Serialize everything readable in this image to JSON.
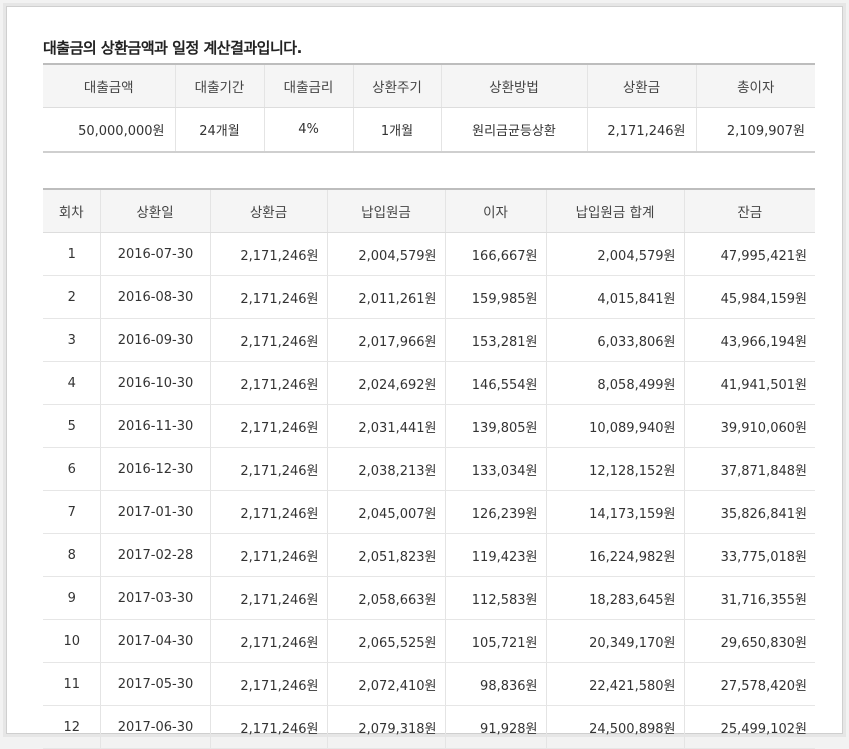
{
  "heading": "대출금의 상환금액과 일정 계산결과입니다.",
  "summary": {
    "headers": [
      "대출금액",
      "대출기간",
      "대출금리",
      "상환주기",
      "상환방법",
      "상환금",
      "총이자"
    ],
    "values": [
      "50,000,000원",
      "24개월",
      "4%",
      "1개월",
      "원리금균등상환",
      "2,171,246원",
      "2,109,907원"
    ]
  },
  "schedule": {
    "headers": [
      "회차",
      "상환일",
      "상환금",
      "납입원금",
      "이자",
      "납입원금 합계",
      "잔금"
    ],
    "rows": [
      [
        "1",
        "2016-07-30",
        "2,171,246원",
        "2,004,579원",
        "166,667원",
        "2,004,579원",
        "47,995,421원"
      ],
      [
        "2",
        "2016-08-30",
        "2,171,246원",
        "2,011,261원",
        "159,985원",
        "4,015,841원",
        "45,984,159원"
      ],
      [
        "3",
        "2016-09-30",
        "2,171,246원",
        "2,017,966원",
        "153,281원",
        "6,033,806원",
        "43,966,194원"
      ],
      [
        "4",
        "2016-10-30",
        "2,171,246원",
        "2,024,692원",
        "146,554원",
        "8,058,499원",
        "41,941,501원"
      ],
      [
        "5",
        "2016-11-30",
        "2,171,246원",
        "2,031,441원",
        "139,805원",
        "10,089,940원",
        "39,910,060원"
      ],
      [
        "6",
        "2016-12-30",
        "2,171,246원",
        "2,038,213원",
        "133,034원",
        "12,128,152원",
        "37,871,848원"
      ],
      [
        "7",
        "2017-01-30",
        "2,171,246원",
        "2,045,007원",
        "126,239원",
        "14,173,159원",
        "35,826,841원"
      ],
      [
        "8",
        "2017-02-28",
        "2,171,246원",
        "2,051,823원",
        "119,423원",
        "16,224,982원",
        "33,775,018원"
      ],
      [
        "9",
        "2017-03-30",
        "2,171,246원",
        "2,058,663원",
        "112,583원",
        "18,283,645원",
        "31,716,355원"
      ],
      [
        "10",
        "2017-04-30",
        "2,171,246원",
        "2,065,525원",
        "105,721원",
        "20,349,170원",
        "29,650,830원"
      ],
      [
        "11",
        "2017-05-30",
        "2,171,246원",
        "2,072,410원",
        "98,836원",
        "22,421,580원",
        "27,578,420원"
      ],
      [
        "12",
        "2017-06-30",
        "2,171,246원",
        "2,079,318원",
        "91,928원",
        "24,500,898원",
        "25,499,102원"
      ]
    ]
  }
}
